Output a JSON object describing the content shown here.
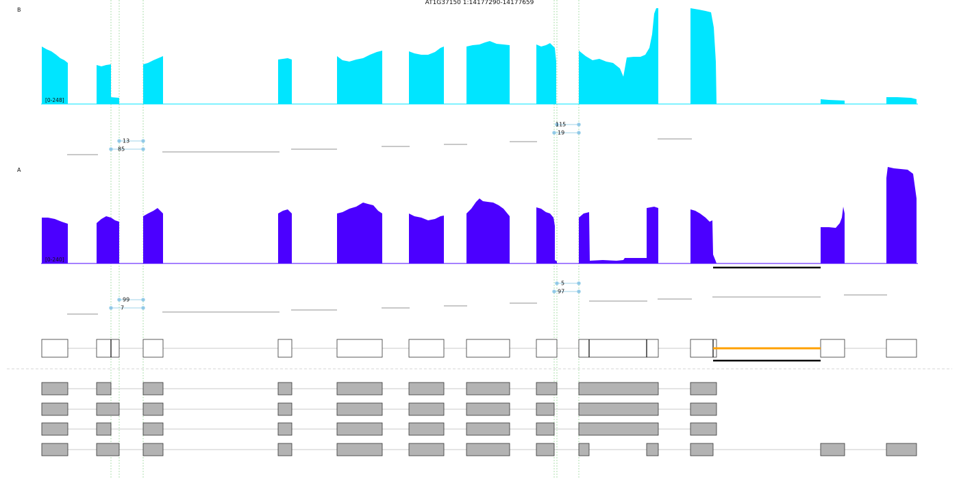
{
  "title": "AT1G37150 1:14177290-14177659",
  "colors": {
    "track_b": "#00e5ff",
    "track_a": "#4b00ff",
    "junction": "#9fd3ea",
    "junction_dot": "#8fc6e6",
    "gray_line": "#c8c8c8",
    "highlight_bar": "#000000",
    "highlight_intron": "#ffa000",
    "exon_fill_ref": "#ffffff",
    "exon_fill_iso": "#b3b3b3",
    "guide_line": "#98d898"
  },
  "panels": [
    {
      "id": "B",
      "label": "B",
      "range_label": "[0-248]"
    },
    {
      "id": "A",
      "label": "A",
      "range_label": "[0-240]"
    }
  ],
  "junction_counts": {
    "B": [
      "13",
      "85",
      "115",
      "19"
    ],
    "A": [
      "99",
      "7",
      "5",
      "97"
    ]
  }
}
